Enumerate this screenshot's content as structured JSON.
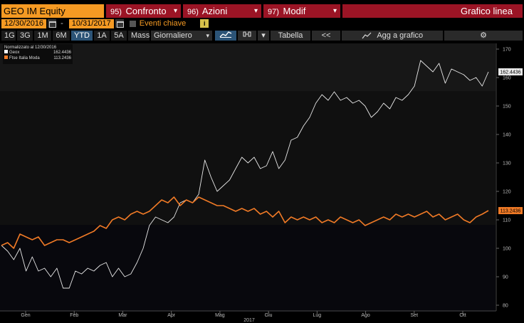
{
  "toolbar1": {
    "ticker": "GEO IM Equity",
    "menus": [
      {
        "num": "95)",
        "label": "Confronto"
      },
      {
        "num": "96)",
        "label": "Azioni"
      },
      {
        "num": "97)",
        "label": "Modif"
      }
    ],
    "title": "Grafico linea"
  },
  "toolbar2": {
    "start_date": "12/30/2016",
    "separator": "-",
    "end_date": "10/31/2017",
    "key_events_label": "Eventi chiave",
    "info_icon": "i"
  },
  "toolbar3": {
    "periods": [
      "1G",
      "3G",
      "1M",
      "6M",
      "YTD",
      "1A",
      "5A",
      "Mass"
    ],
    "selected_period": "YTD",
    "frequency": "Giornaliero",
    "table_label": "Tabella",
    "back_label": "<<",
    "add_to_chart_label": "Agg a grafico"
  },
  "legend": {
    "header": "Normalizzato al 12/30/2016",
    "items": [
      {
        "name": "Geox",
        "value": "162.4436",
        "color": "#ffffff"
      },
      {
        "name": "Ftse Italia Moda",
        "value": "113.2436",
        "color": "#f07a26"
      }
    ]
  },
  "chart_data": {
    "type": "line",
    "x_ticks": [
      "Gen",
      "Feb",
      "Mar",
      "Apr",
      "Mag",
      "Giu",
      "Lug",
      "Ago",
      "Set",
      "Ott"
    ],
    "year_label": "2017",
    "y_ticks": [
      "80",
      "90",
      "100",
      "110",
      "120",
      "130",
      "140",
      "150",
      "160",
      "170"
    ],
    "ylim": [
      78,
      172
    ],
    "last_labels": [
      "162.4436",
      "113.2436"
    ],
    "series": [
      {
        "name": "Geox",
        "color": "#e8e8e8",
        "values": [
          101,
          99,
          96,
          100,
          92,
          97,
          92,
          93,
          90,
          93,
          86,
          86,
          92,
          91,
          93,
          92,
          94,
          95,
          90,
          93,
          90,
          91,
          95,
          100,
          108,
          111,
          110,
          109,
          111,
          116,
          117,
          116,
          119,
          131,
          125,
          120,
          122,
          124,
          128,
          132,
          130,
          132,
          128,
          129,
          134,
          128,
          131,
          138,
          139,
          143,
          146,
          151,
          154,
          152,
          155,
          152,
          153,
          151,
          152,
          150,
          146,
          148,
          151,
          149,
          153,
          152,
          154,
          157,
          166,
          164,
          162,
          165,
          158,
          163,
          162,
          161,
          159,
          160,
          157,
          162
        ]
      },
      {
        "name": "Ftse Italia Moda",
        "color": "#f07a26",
        "values": [
          101,
          102,
          100,
          105,
          104,
          103,
          104,
          101,
          102,
          103,
          103,
          102,
          103,
          104,
          105,
          106,
          108,
          107,
          110,
          111,
          110,
          112,
          113,
          112,
          113,
          115,
          117,
          116,
          118,
          115,
          117,
          116,
          118,
          117,
          116,
          115,
          115,
          114,
          113,
          114,
          113,
          114,
          112,
          113,
          111,
          113,
          109,
          111,
          110,
          111,
          110,
          111,
          109,
          110,
          109,
          111,
          110,
          109,
          110,
          108,
          109,
          110,
          111,
          110,
          112,
          111,
          112,
          111,
          112,
          113,
          111,
          112,
          110,
          111,
          112,
          110,
          109,
          111,
          112,
          113.2436
        ]
      }
    ]
  },
  "colors": {
    "ticker_bg": "#f59a23",
    "menu_bg": "#9b1425",
    "selected_bg": "#2c5477",
    "series_geox": "#e8e8e8",
    "series_ftse": "#f07a26"
  }
}
